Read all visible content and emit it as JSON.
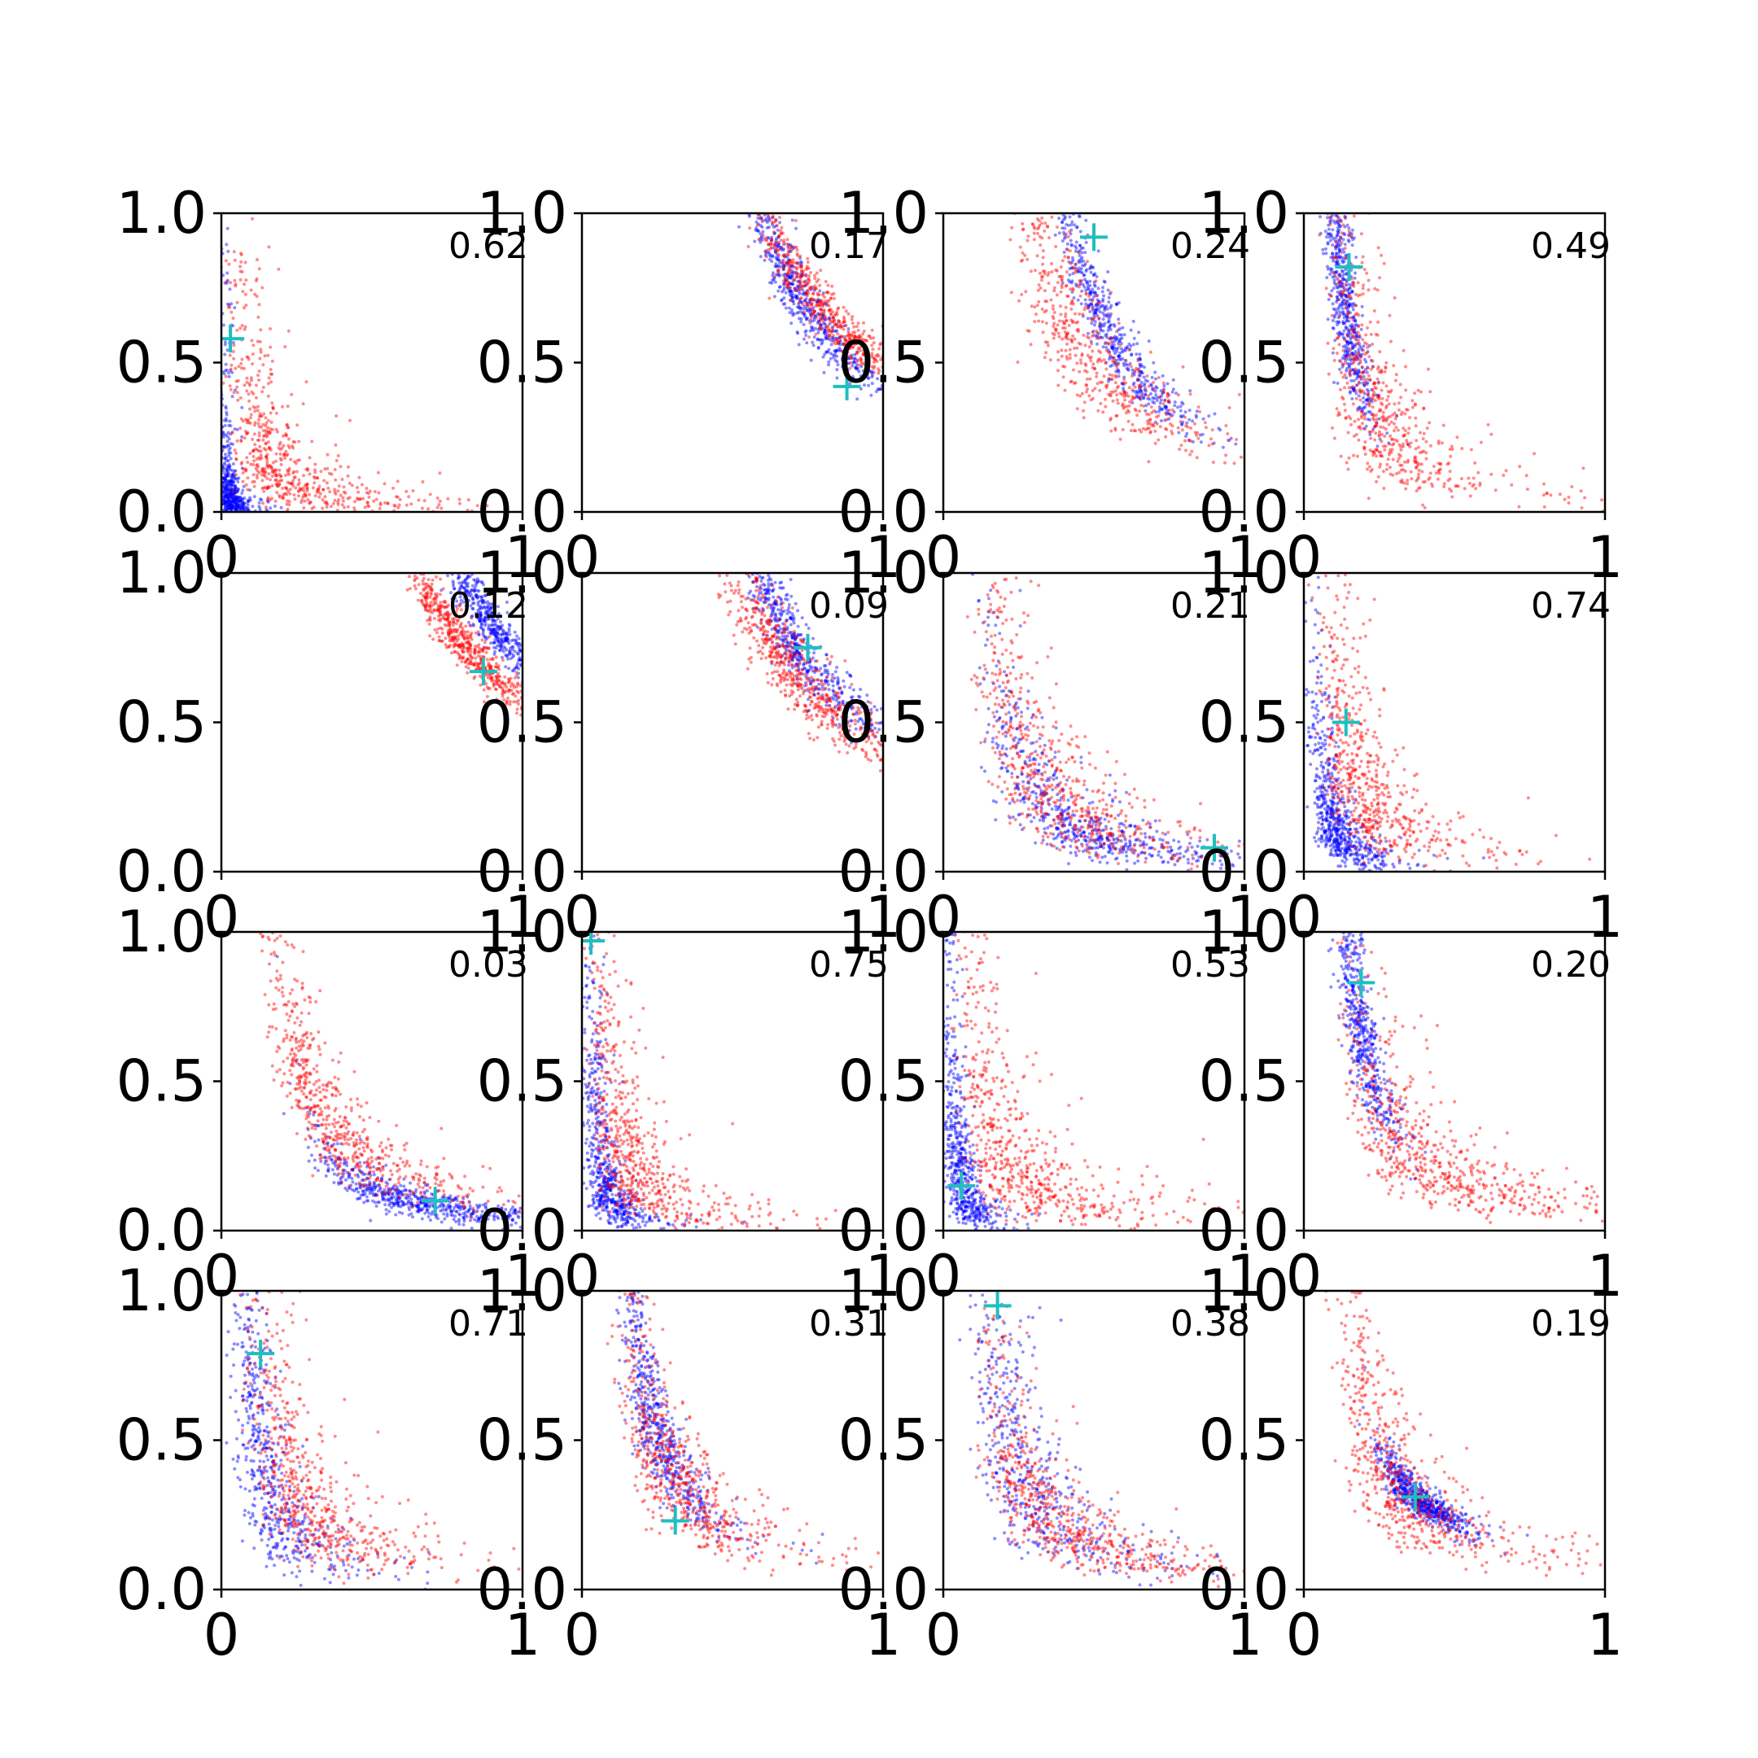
{
  "chart_data": {
    "type": "scatter",
    "layout": {
      "rows": 4,
      "cols": 4
    },
    "xlim": [
      0,
      1
    ],
    "ylim": [
      0,
      1
    ],
    "x_tick_labels": [
      "0",
      "1"
    ],
    "y_tick_labels": [
      "0.0",
      "0.5",
      "1.0"
    ],
    "grid": false,
    "legend": "none",
    "point_colors": {
      "series_a": "#0000ff",
      "series_b": "#ff0000"
    },
    "marker_color": "#1fbfbf",
    "marker_symbol": "+",
    "panels": [
      {
        "annotation": "0.62",
        "marker": [
          0.03,
          0.58
        ],
        "blue": {
          "c": [
            0.02,
            0.06
          ],
          "b": 1.6,
          "s": 0.9,
          "sp": 1.3,
          "n": 650
        },
        "red": {
          "c": [
            0.18,
            0.15
          ],
          "b": 1.4,
          "s": 0.8,
          "sp": 1.4,
          "n": 650
        }
      },
      {
        "annotation": "0.17",
        "marker": [
          0.88,
          0.42
        ],
        "blue": {
          "c": [
            0.72,
            0.72
          ],
          "b": 1.7,
          "s": 0.18,
          "sp": 0.55,
          "n": 650
        },
        "red": {
          "c": [
            0.8,
            0.68
          ],
          "b": 1.4,
          "s": 0.22,
          "sp": 0.45,
          "n": 650
        }
      },
      {
        "annotation": "0.24",
        "marker": [
          0.5,
          0.92
        ],
        "blue": {
          "c": [
            0.52,
            0.66
          ],
          "b": 1.7,
          "s": 0.28,
          "sp": 0.55,
          "n": 650
        },
        "red": {
          "c": [
            0.46,
            0.56
          ],
          "b": 1.3,
          "s": 0.42,
          "sp": 0.9,
          "n": 650
        }
      },
      {
        "annotation": "0.49",
        "marker": [
          0.15,
          0.82
        ],
        "blue": {
          "c": [
            0.13,
            0.72
          ],
          "b": 1.4,
          "s": 0.28,
          "sp": 0.9,
          "n": 650
        },
        "red": {
          "c": [
            0.24,
            0.34
          ],
          "b": 1.4,
          "s": 0.55,
          "sp": 1.4,
          "n": 650
        }
      },
      {
        "annotation": "0.12",
        "marker": [
          0.87,
          0.67
        ],
        "blue": {
          "c": [
            0.9,
            0.82
          ],
          "b": 1.5,
          "s": 0.14,
          "sp": 0.4,
          "n": 650
        },
        "red": {
          "c": [
            0.8,
            0.76
          ],
          "b": 1.3,
          "s": 0.16,
          "sp": 0.45,
          "n": 650
        }
      },
      {
        "annotation": "0.09",
        "marker": [
          0.75,
          0.75
        ],
        "blue": {
          "c": [
            0.7,
            0.77
          ],
          "b": 1.4,
          "s": 0.22,
          "sp": 0.5,
          "n": 650
        },
        "red": {
          "c": [
            0.72,
            0.64
          ],
          "b": 1.3,
          "s": 0.24,
          "sp": 0.7,
          "n": 650
        }
      },
      {
        "annotation": "0.21",
        "marker": [
          0.9,
          0.08
        ],
        "blue": {
          "c": [
            0.42,
            0.16
          ],
          "b": 1.6,
          "s": 0.55,
          "sp": 1.2,
          "n": 650
        },
        "red": {
          "c": [
            0.32,
            0.3
          ],
          "b": 1.4,
          "s": 0.55,
          "sp": 1.4,
          "n": 650
        }
      },
      {
        "annotation": "0.74",
        "marker": [
          0.14,
          0.5
        ],
        "blue": {
          "c": [
            0.1,
            0.15
          ],
          "b": 1.5,
          "s": 0.55,
          "sp": 1.5,
          "n": 650
        },
        "red": {
          "c": [
            0.18,
            0.32
          ],
          "b": 1.3,
          "s": 0.6,
          "sp": 1.5,
          "n": 650
        }
      },
      {
        "annotation": "0.03",
        "marker": [
          0.71,
          0.1
        ],
        "blue": {
          "c": [
            0.66,
            0.09
          ],
          "b": 1.6,
          "s": 0.35,
          "sp": 0.8,
          "n": 650
        },
        "red": {
          "c": [
            0.36,
            0.36
          ],
          "b": 1.4,
          "s": 0.48,
          "sp": 0.9,
          "n": 650
        }
      },
      {
        "annotation": "0.75",
        "marker": [
          0.03,
          0.97
        ],
        "blue": {
          "c": [
            0.07,
            0.17
          ],
          "b": 1.6,
          "s": 0.65,
          "sp": 1.4,
          "n": 650
        },
        "red": {
          "c": [
            0.16,
            0.22
          ],
          "b": 1.3,
          "s": 0.7,
          "sp": 1.5,
          "n": 650
        }
      },
      {
        "annotation": "0.53",
        "marker": [
          0.06,
          0.15
        ],
        "blue": {
          "c": [
            0.05,
            0.22
          ],
          "b": 1.5,
          "s": 0.7,
          "sp": 1.4,
          "n": 650
        },
        "red": {
          "c": [
            0.22,
            0.24
          ],
          "b": 1.3,
          "s": 0.7,
          "sp": 1.5,
          "n": 650
        }
      },
      {
        "annotation": "0.20",
        "marker": [
          0.19,
          0.83
        ],
        "blue": {
          "c": [
            0.18,
            0.72
          ],
          "b": 1.5,
          "s": 0.28,
          "sp": 0.9,
          "n": 650
        },
        "red": {
          "c": [
            0.4,
            0.24
          ],
          "b": 1.3,
          "s": 0.55,
          "sp": 1.2,
          "n": 650
        }
      },
      {
        "annotation": "0.71",
        "marker": [
          0.13,
          0.79
        ],
        "blue": {
          "c": [
            0.14,
            0.4
          ],
          "b": 1.4,
          "s": 0.6,
          "sp": 1.4,
          "n": 650
        },
        "red": {
          "c": [
            0.26,
            0.32
          ],
          "b": 1.3,
          "s": 0.55,
          "sp": 1.4,
          "n": 650
        }
      },
      {
        "annotation": "0.31",
        "marker": [
          0.31,
          0.23
        ],
        "blue": {
          "c": [
            0.24,
            0.55
          ],
          "b": 1.4,
          "s": 0.35,
          "sp": 0.9,
          "n": 650
        },
        "red": {
          "c": [
            0.3,
            0.38
          ],
          "b": 1.3,
          "s": 0.5,
          "sp": 1.2,
          "n": 650
        }
      },
      {
        "annotation": "0.38",
        "marker": [
          0.18,
          0.95
        ],
        "blue": {
          "c": [
            0.24,
            0.45
          ],
          "b": 1.5,
          "s": 0.6,
          "sp": 1.3,
          "n": 650
        },
        "red": {
          "c": [
            0.34,
            0.26
          ],
          "b": 1.4,
          "s": 0.55,
          "sp": 1.2,
          "n": 650
        }
      },
      {
        "annotation": "0.19",
        "marker": [
          0.37,
          0.31
        ],
        "blue": {
          "c": [
            0.38,
            0.3
          ],
          "b": 1.1,
          "s": 0.2,
          "sp": 0.5,
          "n": 650
        },
        "red": {
          "c": [
            0.3,
            0.36
          ],
          "b": 1.2,
          "s": 0.5,
          "sp": 1.2,
          "n": 650
        }
      }
    ]
  }
}
